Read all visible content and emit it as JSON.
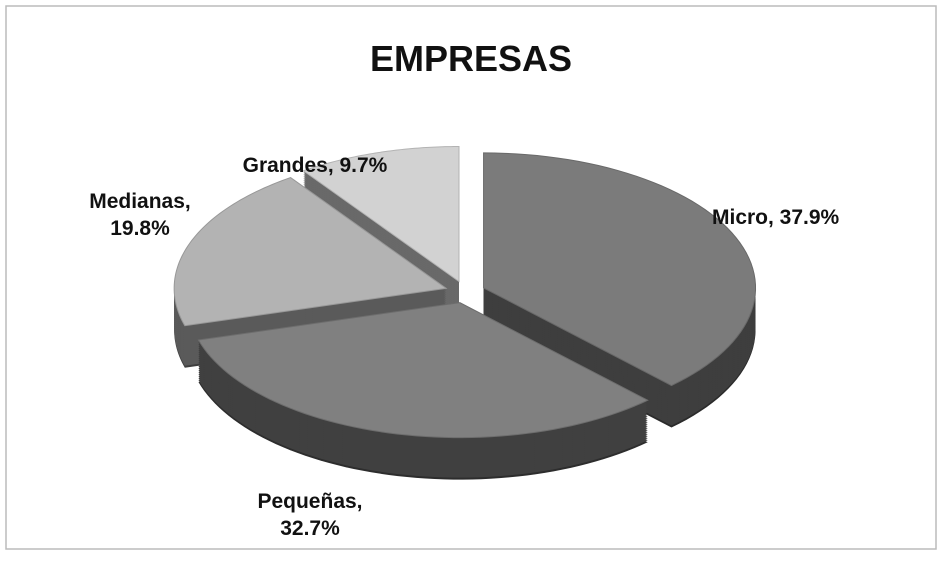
{
  "chart_data": {
    "type": "pie",
    "title": "EMPRESAS",
    "categories": [
      "Micro",
      "Pequeñas",
      "Medianas",
      "Grandes"
    ],
    "values": [
      37.9,
      32.7,
      19.8,
      9.7
    ],
    "value_labels": [
      "Micro, 37.9%",
      "Pequeñas, 32.7%",
      "Medianas, 19.8%",
      "Grandes, 9.7%"
    ],
    "colors": [
      "#7b7b7b",
      "#808080",
      "#b3b3b3",
      "#d2d2d2"
    ]
  }
}
